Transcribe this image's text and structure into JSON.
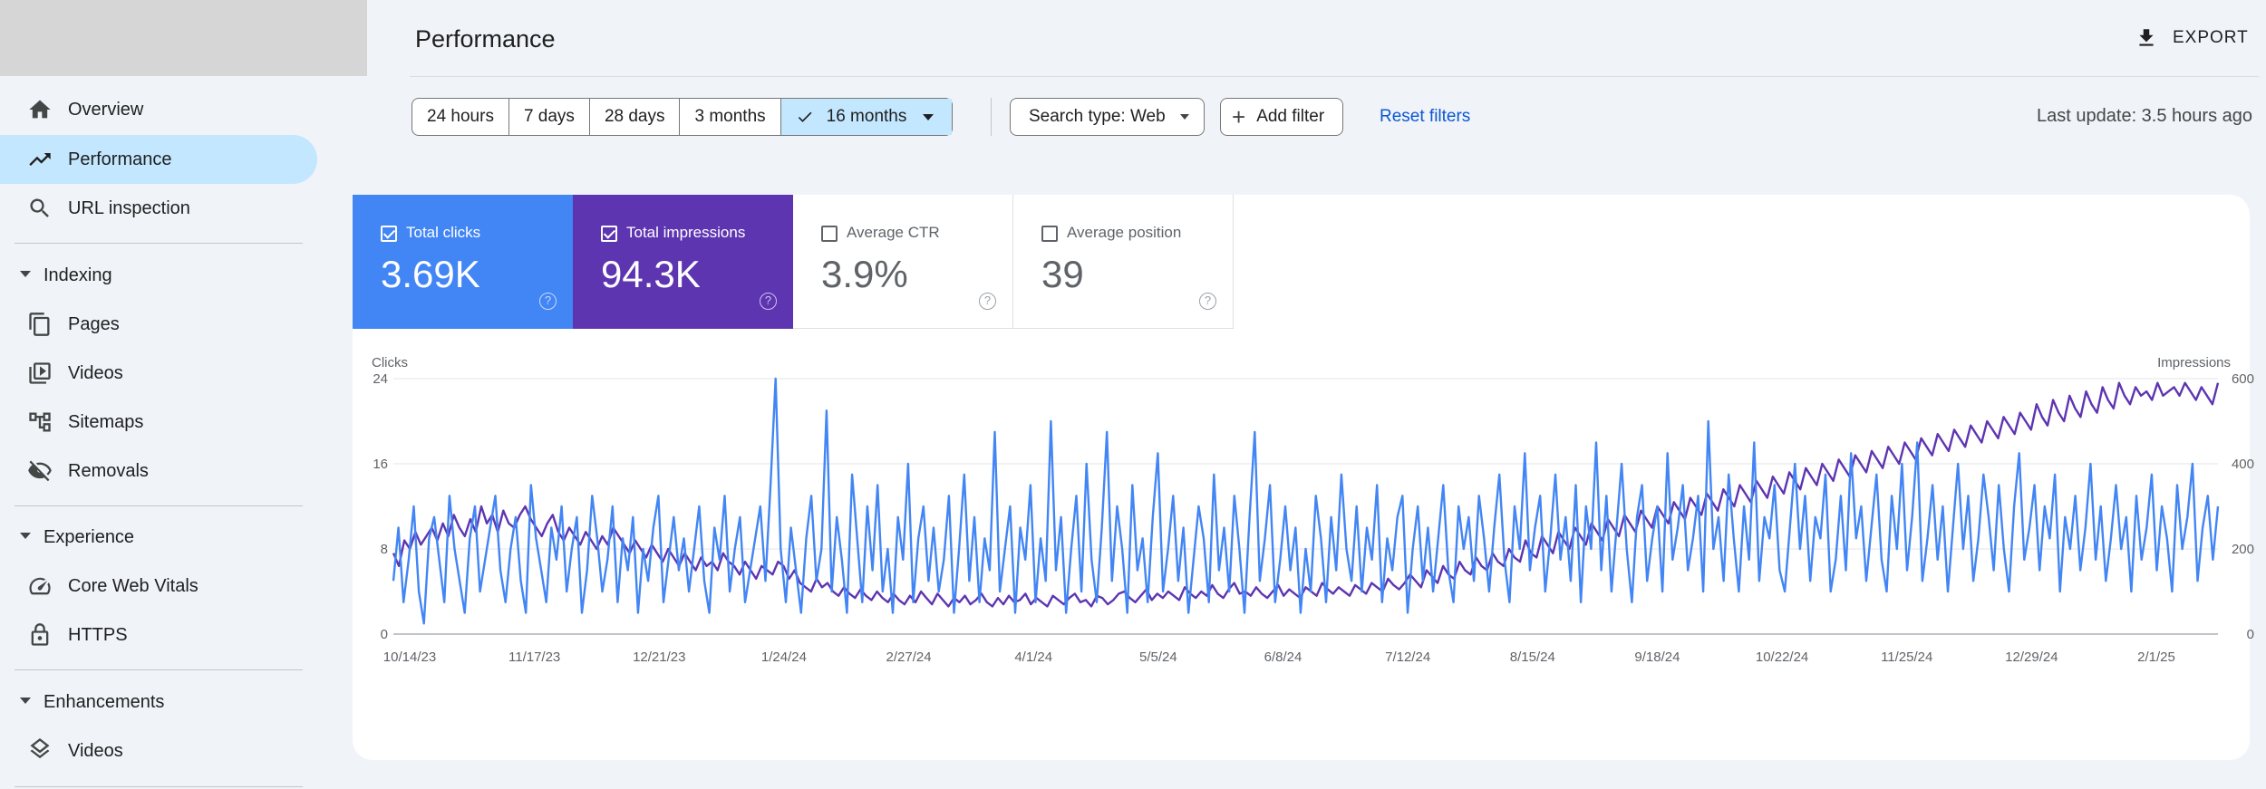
{
  "sidebar": {
    "items": [
      {
        "label": "Overview",
        "icon": "home-icon"
      },
      {
        "label": "Performance",
        "icon": "trending-up-icon",
        "active": true
      },
      {
        "label": "URL inspection",
        "icon": "search-icon"
      }
    ],
    "sections": [
      {
        "label": "Indexing",
        "items": [
          {
            "label": "Pages",
            "icon": "pages-icon"
          },
          {
            "label": "Videos",
            "icon": "video-file-icon"
          },
          {
            "label": "Sitemaps",
            "icon": "sitemap-icon"
          },
          {
            "label": "Removals",
            "icon": "visibility-off-icon"
          }
        ]
      },
      {
        "label": "Experience",
        "items": [
          {
            "label": "Core Web Vitals",
            "icon": "speed-gauge-icon"
          },
          {
            "label": "HTTPS",
            "icon": "lock-icon"
          }
        ]
      },
      {
        "label": "Enhancements",
        "items": [
          {
            "label": "Videos",
            "icon": "layers-icon"
          }
        ]
      }
    ]
  },
  "header": {
    "title": "Performance",
    "export_label": "EXPORT"
  },
  "filters": {
    "ranges": [
      "24 hours",
      "7 days",
      "28 days",
      "3 months",
      "16 months"
    ],
    "selected_range": "16 months",
    "search_type": "Search type: Web",
    "add_filter": "Add filter",
    "reset": "Reset filters",
    "last_update": "Last update: 3.5 hours ago"
  },
  "metrics": [
    {
      "label": "Total clicks",
      "value": "3.69K",
      "checked": true,
      "color": "#4285f4"
    },
    {
      "label": "Total impressions",
      "value": "94.3K",
      "checked": true,
      "color": "#5e35b1"
    },
    {
      "label": "Average CTR",
      "value": "3.9%",
      "checked": false
    },
    {
      "label": "Average position",
      "value": "39",
      "checked": false
    }
  ],
  "chart_data": {
    "type": "line",
    "left_axis_label": "Clicks",
    "right_axis_label": "Impressions",
    "left_ylim": [
      0,
      24
    ],
    "right_ylim": [
      0,
      600
    ],
    "left_ticks": [
      "0",
      "8",
      "16",
      "24"
    ],
    "right_ticks": [
      "0",
      "200",
      "400",
      "600"
    ],
    "grid": true,
    "x_tick_labels": [
      "10/14/23",
      "11/17/23",
      "12/21/23",
      "1/24/24",
      "2/27/24",
      "4/1/24",
      "5/5/24",
      "6/8/24",
      "7/12/24",
      "8/15/24",
      "9/18/24",
      "10/22/24",
      "11/25/24",
      "12/29/24",
      "2/1/25"
    ],
    "series": [
      {
        "name": "Total clicks",
        "color": "#4285f4",
        "axis": "left",
        "values": [
          5,
          10,
          3,
          7,
          12,
          4,
          1,
          9,
          11,
          7,
          3,
          13,
          8,
          5,
          2,
          9,
          12,
          4,
          7,
          10,
          13,
          6,
          3,
          8,
          11,
          5,
          2,
          14,
          9,
          6,
          3,
          10,
          7,
          12,
          4,
          8,
          11,
          2,
          6,
          13,
          9,
          4,
          7,
          12,
          3,
          9,
          6,
          11,
          2,
          8,
          5,
          10,
          13,
          3,
          7,
          11,
          6,
          9,
          4,
          8,
          12,
          5,
          2,
          10,
          7,
          13,
          4,
          8,
          11,
          3,
          6,
          9,
          12,
          5,
          14,
          24,
          8,
          3,
          10,
          6,
          2,
          9,
          13,
          5,
          8,
          21,
          4,
          11,
          7,
          2,
          15,
          9,
          3,
          12,
          6,
          14,
          4,
          8,
          2,
          11,
          7,
          16,
          3,
          9,
          12,
          5,
          10,
          4,
          7,
          13,
          2,
          8,
          15,
          5,
          11,
          3,
          9,
          6,
          19,
          4,
          8,
          12,
          2,
          10,
          7,
          14,
          3,
          9,
          5,
          20,
          6,
          11,
          2,
          8,
          13,
          4,
          16,
          7,
          3,
          10,
          19,
          5,
          12,
          8,
          2,
          14,
          6,
          9,
          3,
          11,
          17,
          4,
          8,
          13,
          5,
          10,
          2,
          7,
          12,
          9,
          3,
          15,
          6,
          10,
          4,
          13,
          8,
          2,
          11,
          19,
          5,
          9,
          14,
          3,
          7,
          12,
          6,
          10,
          2,
          8,
          4,
          13,
          9,
          3,
          11,
          6,
          15,
          8,
          5,
          12,
          4,
          10,
          7,
          14,
          3,
          9,
          6,
          11,
          13,
          2,
          8,
          12,
          5,
          10,
          4,
          9,
          14,
          6,
          3,
          12,
          8,
          11,
          5,
          13,
          9,
          4,
          10,
          15,
          7,
          3,
          12,
          8,
          17,
          6,
          10,
          13,
          4,
          9,
          15,
          7,
          11,
          5,
          14,
          3,
          12,
          8,
          18,
          6,
          13,
          4,
          10,
          16,
          8,
          3,
          11,
          14,
          5,
          9,
          12,
          4,
          17,
          7,
          10,
          14,
          6,
          9,
          13,
          4,
          20,
          8,
          11,
          5,
          15,
          9,
          4,
          12,
          7,
          18,
          5,
          11,
          9,
          14,
          6,
          4,
          10,
          16,
          8,
          13,
          5,
          11,
          9,
          15,
          4,
          7,
          13,
          6,
          17,
          9,
          12,
          5,
          10,
          15,
          7,
          4,
          13,
          8,
          16,
          6,
          11,
          18,
          5,
          9,
          14,
          7,
          12,
          4,
          10,
          16,
          8,
          13,
          5,
          9,
          15,
          11,
          6,
          14,
          8,
          4,
          12,
          17,
          7,
          10,
          14,
          6,
          12,
          9,
          15,
          4,
          11,
          8,
          13,
          6,
          10,
          16,
          7,
          12,
          5,
          9,
          14,
          8,
          11,
          4,
          13,
          7,
          10,
          15,
          6,
          12,
          9,
          4,
          14,
          8,
          11,
          16,
          5,
          10,
          13,
          7,
          12
        ],
        "note": "clicks series"
      },
      {
        "name": "Total impressions",
        "color": "#5e35b1",
        "axis": "right",
        "values": [
          190,
          160,
          220,
          200,
          240,
          210,
          230,
          250,
          220,
          260,
          230,
          280,
          250,
          230,
          270,
          240,
          300,
          260,
          280,
          240,
          290,
          260,
          250,
          280,
          300,
          270,
          250,
          230,
          260,
          280,
          240,
          220,
          250,
          230,
          210,
          240,
          220,
          200,
          230,
          210,
          250,
          230,
          210,
          190,
          220,
          200,
          180,
          210,
          190,
          170,
          200,
          180,
          160,
          190,
          170,
          150,
          180,
          160,
          170,
          150,
          190,
          170,
          160,
          140,
          170,
          150,
          130,
          160,
          150,
          140,
          170,
          160,
          130,
          150,
          120,
          110,
          100,
          130,
          110,
          120,
          100,
          90,
          110,
          95,
          85,
          105,
          90,
          80,
          100,
          85,
          75,
          95,
          80,
          70,
          90,
          75,
          100,
          85,
          70,
          95,
          80,
          65,
          85,
          75,
          90,
          70,
          80,
          95,
          75,
          65,
          85,
          70,
          90,
          75,
          80,
          95,
          70,
          85,
          75,
          65,
          90,
          80,
          70,
          85,
          95,
          75,
          80,
          65,
          90,
          85,
          70,
          80,
          95,
          100,
          85,
          75,
          90,
          105,
          80,
          95,
          85,
          100,
          90,
          80,
          110,
          95,
          85,
          100,
          90,
          115,
          95,
          85,
          105,
          120,
          95,
          100,
          90,
          110,
          95,
          85,
          100,
          115,
          90,
          105,
          95,
          85,
          110,
          100,
          90,
          120,
          105,
          95,
          110,
          100,
          90,
          115,
          105,
          95,
          120,
          110,
          100,
          130,
          115,
          105,
          120,
          140,
          125,
          110,
          150,
          135,
          120,
          160,
          140,
          130,
          170,
          150,
          140,
          180,
          160,
          150,
          190,
          170,
          160,
          200,
          180,
          170,
          220,
          190,
          180,
          230,
          210,
          190,
          240,
          220,
          200,
          250,
          230,
          210,
          260,
          240,
          220,
          270,
          250,
          230,
          280,
          260,
          240,
          290,
          270,
          250,
          300,
          280,
          260,
          310,
          290,
          270,
          320,
          300,
          280,
          330,
          310,
          290,
          340,
          320,
          300,
          350,
          330,
          310,
          360,
          340,
          320,
          370,
          350,
          330,
          380,
          360,
          340,
          390,
          370,
          350,
          400,
          380,
          360,
          410,
          390,
          370,
          420,
          400,
          380,
          430,
          410,
          390,
          440,
          420,
          400,
          450,
          430,
          410,
          460,
          440,
          420,
          470,
          450,
          430,
          480,
          460,
          440,
          490,
          470,
          450,
          500,
          480,
          460,
          510,
          490,
          470,
          520,
          500,
          480,
          540,
          510,
          490,
          550,
          520,
          500,
          560,
          530,
          510,
          570,
          540,
          520,
          580,
          550,
          530,
          590,
          560,
          540,
          580,
          560,
          570,
          550,
          590,
          560,
          570,
          580,
          560,
          590,
          570,
          550,
          580,
          560,
          540,
          590
        ],
        "note": "impressions series"
      }
    ]
  }
}
